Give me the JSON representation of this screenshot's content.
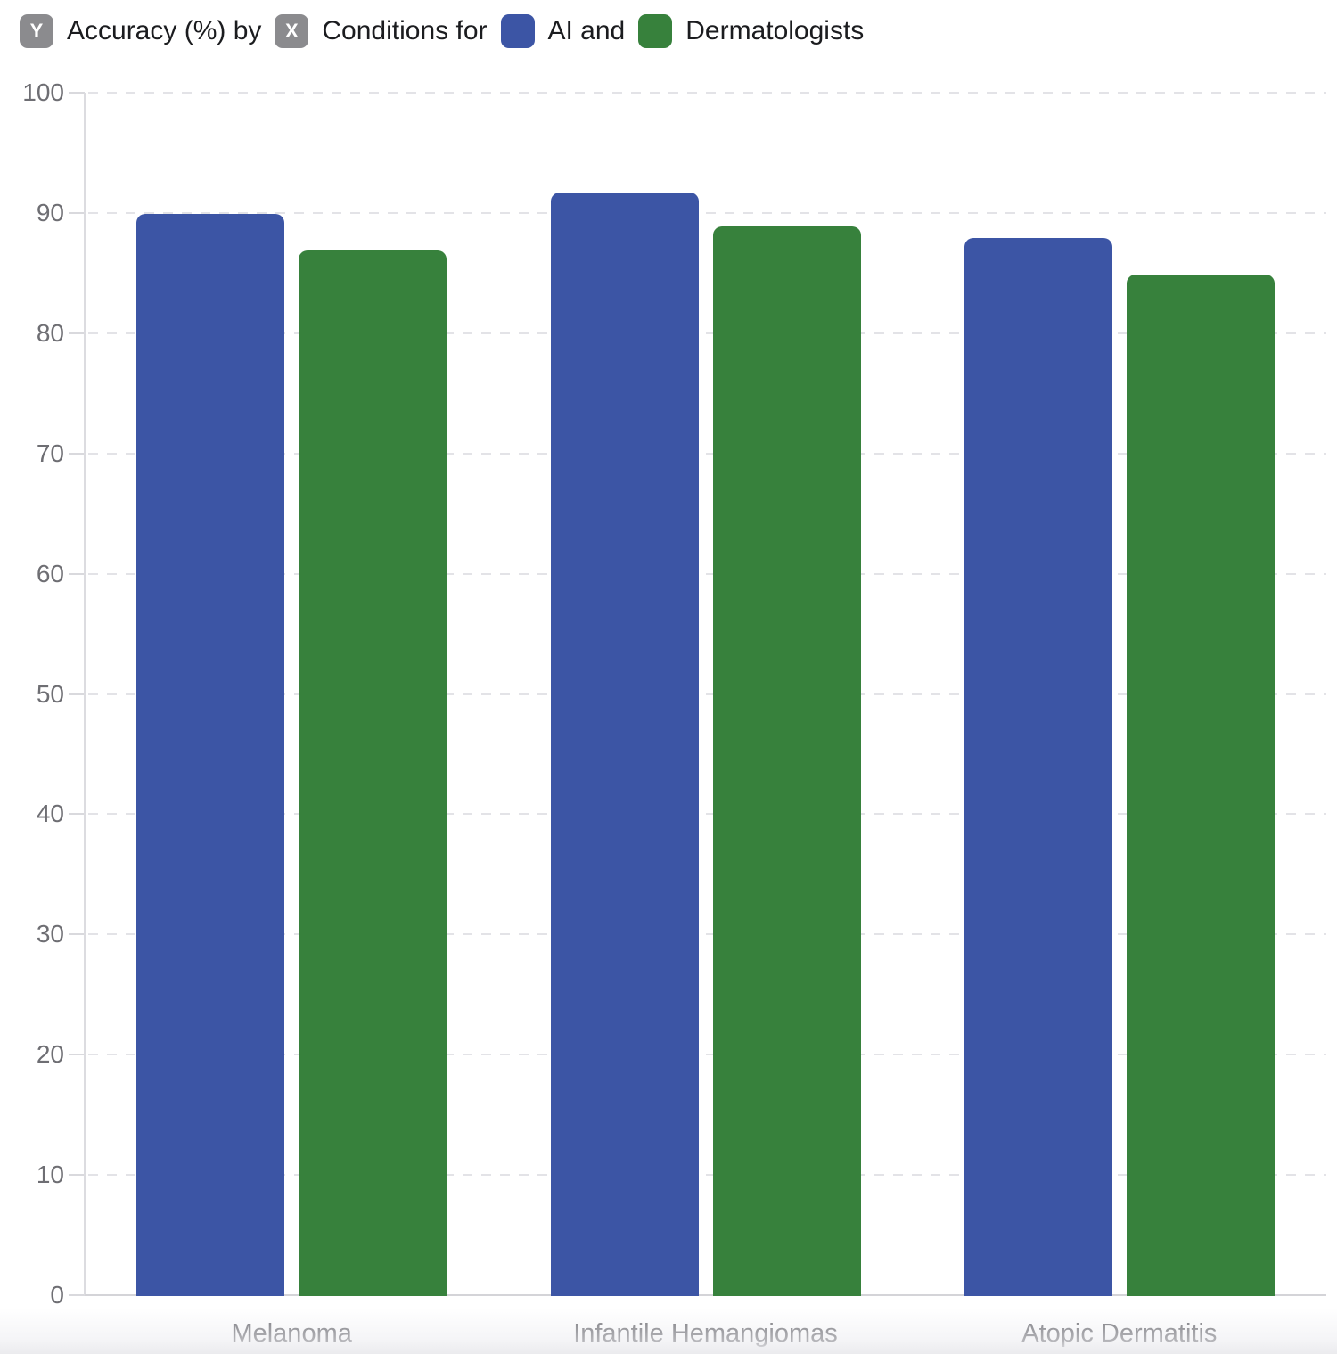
{
  "header": {
    "y_badge": "Y",
    "y_text": "Accuracy (%) by",
    "x_badge": "X",
    "x_text": "Conditions for",
    "series": [
      {
        "label": "AI and",
        "swatch_color": "#3C55A5"
      },
      {
        "label": "Dermatologists",
        "swatch_color": "#37813C"
      }
    ]
  },
  "chart_data": {
    "type": "bar",
    "title": "Accuracy (%) by Conditions for AI and Dermatologists",
    "ylabel": "Accuracy (%)",
    "xlabel": "Conditions",
    "categories": [
      "Melanoma",
      "Infantile Hemangiomas",
      "Atopic Dermatitis"
    ],
    "series": [
      {
        "name": "AI",
        "color": "#3C55A5",
        "values": [
          89.9,
          91.7,
          87.9
        ]
      },
      {
        "name": "Dermatologists",
        "color": "#37813C",
        "values": [
          86.9,
          88.9,
          84.9
        ]
      }
    ],
    "ylim": [
      0,
      100
    ],
    "ytick_step": 10,
    "yticks": [
      0,
      10,
      20,
      30,
      40,
      50,
      60,
      70,
      80,
      90,
      100
    ],
    "grid": "horizontal-dashed",
    "legend_position": "top-left"
  }
}
